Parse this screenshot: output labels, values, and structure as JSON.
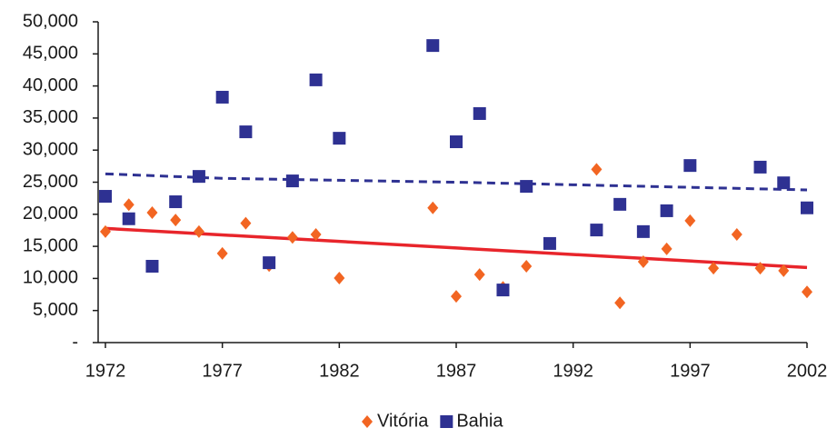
{
  "chart_data": {
    "type": "scatter",
    "xlim": [
      1972,
      2002
    ],
    "xticks": [
      1972,
      1977,
      1982,
      1987,
      1992,
      1997,
      2002
    ],
    "ylim": [
      0,
      50000
    ],
    "yticks": [
      {
        "value": 0,
        "label": "-"
      },
      {
        "value": 5000,
        "label": "5,000"
      },
      {
        "value": 10000,
        "label": "10,000"
      },
      {
        "value": 15000,
        "label": "15,000"
      },
      {
        "value": 20000,
        "label": "20,000"
      },
      {
        "value": 25000,
        "label": "25,000"
      },
      {
        "value": 30000,
        "label": "30,000"
      },
      {
        "value": 35000,
        "label": "35,000"
      },
      {
        "value": 40000,
        "label": "40,000"
      },
      {
        "value": 45000,
        "label": "45,000"
      },
      {
        "value": 50000,
        "label": "50,000"
      }
    ],
    "grid": false,
    "legend": "bottom",
    "series": [
      {
        "name": "Vitória",
        "color": "#f26522",
        "marker": "diamond",
        "x": [
          1972,
          1973,
          1974,
          1975,
          1976,
          1977,
          1978,
          1979,
          1980,
          1981,
          1982,
          1986,
          1987,
          1988,
          1989,
          1990,
          1993,
          1994,
          1995,
          1996,
          1997,
          1998,
          1999,
          2000,
          2001,
          2002
        ],
        "values": [
          17300,
          21500,
          20250,
          19100,
          17300,
          13900,
          18600,
          12000,
          16400,
          16850,
          10050,
          21000,
          7200,
          10600,
          8600,
          11900,
          27000,
          6200,
          12600,
          14600,
          19000,
          11600,
          16850,
          11600,
          11200,
          7900
        ],
        "trend": {
          "color": "#e8252b",
          "dash": false,
          "x": [
            1972,
            2002
          ],
          "values": [
            17800,
            11700
          ]
        }
      },
      {
        "name": "Bahia",
        "color": "#2e3192",
        "marker": "square",
        "x": [
          1972,
          1973,
          1974,
          1975,
          1976,
          1977,
          1978,
          1979,
          1980,
          1981,
          1982,
          1986,
          1987,
          1988,
          1989,
          1990,
          1991,
          1993,
          1994,
          1995,
          1996,
          1997,
          2000,
          2001,
          2002
        ],
        "values": [
          22800,
          19300,
          11900,
          21950,
          25900,
          38250,
          32850,
          12450,
          25200,
          40950,
          31850,
          46300,
          31300,
          35700,
          8200,
          24350,
          15450,
          17550,
          21550,
          17300,
          20550,
          27600,
          27350,
          24900,
          21000
        ],
        "trend": {
          "color": "#2e3192",
          "dash": true,
          "x": [
            1972,
            1977,
            1982,
            1987,
            1992,
            1997,
            2002
          ],
          "values": [
            26300,
            25600,
            25300,
            25000,
            24600,
            24200,
            23800
          ]
        }
      }
    ]
  }
}
